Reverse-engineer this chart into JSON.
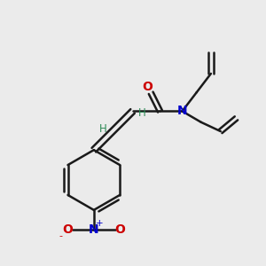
{
  "bg_color": "#ebebeb",
  "bond_color": "#1a1a1a",
  "N_color": "#0000cc",
  "O_color": "#cc0000",
  "H_color": "#2e8b57",
  "figsize": [
    3.0,
    3.0
  ],
  "dpi": 100,
  "xlim": [
    0,
    10
  ],
  "ylim": [
    0,
    10
  ]
}
